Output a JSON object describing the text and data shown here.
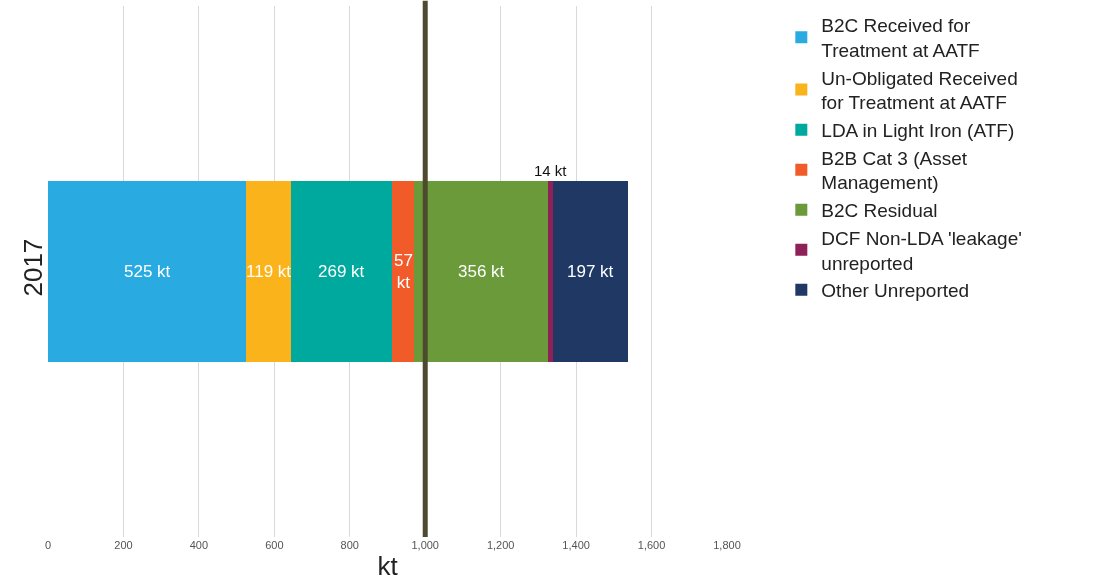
{
  "chart_data": {
    "type": "bar",
    "orientation": "horizontal",
    "stacked": true,
    "categories": [
      "2017"
    ],
    "xlabel": "kt",
    "xlim": [
      0,
      1800
    ],
    "xticks": [
      0,
      200,
      400,
      600,
      800,
      {
        "value": 1000,
        "label": "1,000"
      },
      {
        "value": 1200,
        "label": "1,200"
      },
      {
        "value": 1400,
        "label": "1,400"
      },
      {
        "value": 1600,
        "label": "1,600"
      },
      {
        "value": 1800,
        "label": "1,800"
      }
    ],
    "grid": "x",
    "legend": "right",
    "series": [
      {
        "name": "B2C Received for Treatment at AATF",
        "color": "#29abe2",
        "values": [
          525
        ],
        "value_labels": [
          "525 kt"
        ]
      },
      {
        "name": "Un-Obligated Received for Treatment at AATF",
        "color": "#fbb31b",
        "values": [
          119
        ],
        "value_labels": [
          "119 kt"
        ]
      },
      {
        "name": "LDA in Light Iron (ATF)",
        "color": "#00a99d",
        "values": [
          269
        ],
        "value_labels": [
          "269 kt"
        ]
      },
      {
        "name": "B2B Cat 3 (Asset Management)",
        "color": "#f15a29",
        "values": [
          57
        ],
        "value_labels": [
          "57 kt"
        ]
      },
      {
        "name": "B2C Residual",
        "color": "#6a9a3a",
        "values": [
          356
        ],
        "value_labels": [
          "356 kt"
        ]
      },
      {
        "name": "DCF Non-LDA 'leakage' unreported",
        "color": "#8e2157",
        "values": [
          14
        ],
        "value_labels": [
          "14 kt"
        ]
      },
      {
        "name": "Other Unreported",
        "color": "#1f3864",
        "values": [
          197
        ],
        "value_labels": [
          "197 kt"
        ]
      }
    ],
    "ref_lines": [
      {
        "axis": "x",
        "value": 1000,
        "color": "#4d4a2e"
      }
    ]
  }
}
